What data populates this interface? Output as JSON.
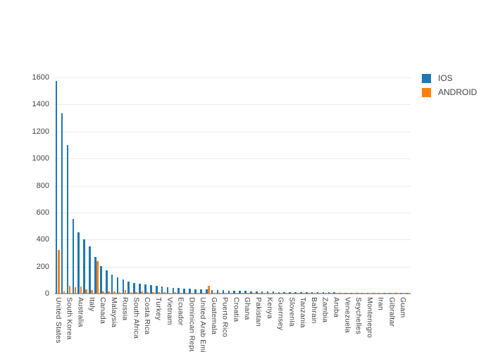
{
  "chart_data": {
    "type": "bar",
    "title": "",
    "xlabel": "",
    "ylabel": "",
    "ylim": [
      0,
      1600
    ],
    "yticks": [
      0,
      200,
      400,
      600,
      800,
      1000,
      1200,
      1400,
      1600
    ],
    "grid": true,
    "background_color": "#ffffff",
    "gridline_color": "#ebebeb",
    "axis_line_color": "#a8a8a8",
    "tick_label_color": "#444444",
    "legend_position": "top-right",
    "categories": [
      "United States",
      "",
      "South Korea",
      "",
      "Australia",
      "",
      "Italy",
      "",
      "Canada",
      "",
      "Malaysia",
      "",
      "Russia",
      "",
      "South Africa",
      "",
      "Costa Rica",
      "",
      "Turkey",
      "",
      "Vietnam",
      "",
      "Ecuador",
      "",
      "Dominican Republic",
      "",
      "United Arab Emirates",
      "",
      "Guatemala",
      "",
      "Puerto Rico",
      "",
      "Croatia",
      "",
      "Ghana",
      "",
      "Pakistan",
      "",
      "Kenya",
      "",
      "Guernsey",
      "",
      "Slovenia",
      "",
      "Tanzania",
      "",
      "Bahrain",
      "",
      "Zambia",
      "",
      "Aruba",
      "",
      "Venezuela",
      "",
      "Seychelles",
      "",
      "Montenegro",
      "",
      "Iran",
      "",
      "Gibraltar",
      "",
      "Guam",
      ""
    ],
    "series": [
      {
        "name": "IOS",
        "color": "#1f77b4",
        "values": [
          1575,
          1335,
          1100,
          555,
          455,
          400,
          350,
          270,
          205,
          170,
          140,
          120,
          103,
          90,
          80,
          72,
          66,
          61,
          56,
          52,
          48,
          44,
          41,
          38,
          35,
          33,
          31,
          29,
          27,
          25,
          24,
          22,
          21,
          20,
          19,
          18,
          17,
          16,
          15,
          14,
          13,
          13,
          12,
          11,
          11,
          10,
          10,
          9,
          9,
          8,
          8,
          7,
          7,
          6,
          6,
          6,
          5,
          5,
          5,
          4,
          4,
          4,
          3,
          3
        ]
      },
      {
        "name": "ANDROID",
        "color": "#ff7f0e",
        "values": [
          325,
          18,
          55,
          45,
          50,
          30,
          25,
          240,
          15,
          18,
          14,
          12,
          26,
          12,
          10,
          14,
          8,
          10,
          8,
          12,
          6,
          8,
          5,
          6,
          5,
          4,
          5,
          55,
          4,
          5,
          3,
          4,
          3,
          3,
          3,
          3,
          2,
          3,
          2,
          2,
          2,
          2,
          2,
          2,
          2,
          1,
          2,
          1,
          1,
          2,
          1,
          1,
          1,
          1,
          1,
          1,
          1,
          1,
          1,
          1,
          1,
          1,
          1,
          1
        ]
      }
    ]
  }
}
